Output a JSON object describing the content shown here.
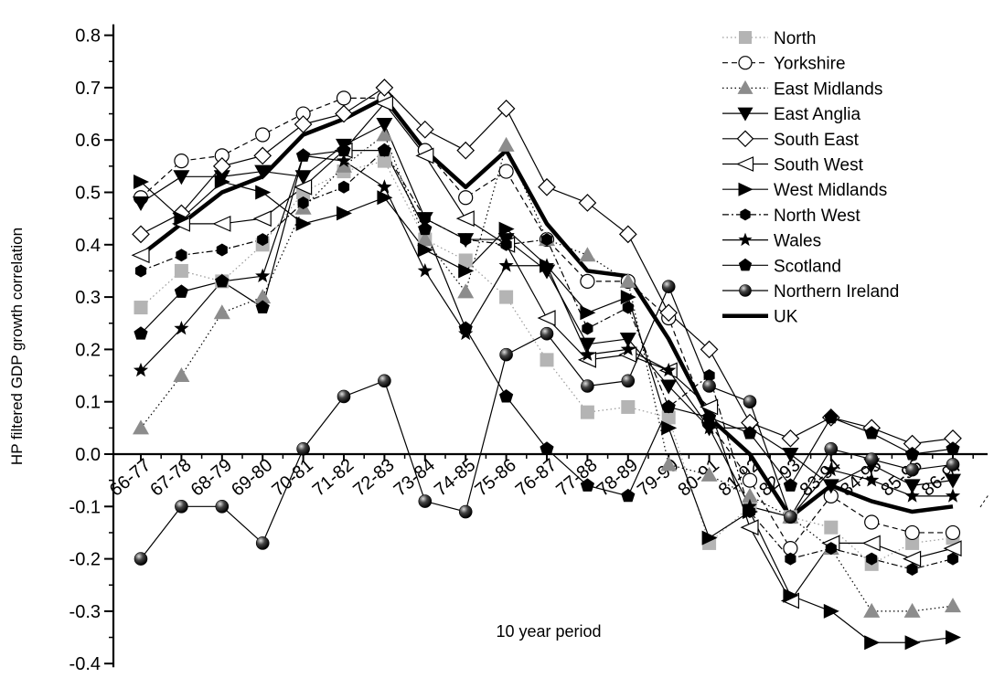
{
  "chart_data": {
    "type": "line",
    "ylabel": "HP filtered GDP growth correlation",
    "xlabel": "10 year period",
    "ylim": [
      -0.4,
      0.8
    ],
    "y_ticks": [
      "-0.4",
      "-0.3",
      "-0.2",
      "-0.1",
      "0.0",
      "0.1",
      "0.2",
      "0.3",
      "0.4",
      "0.5",
      "0.6",
      "0.7",
      "0.8"
    ],
    "categories": [
      "66-77",
      "67-78",
      "68-79",
      "69-80",
      "70-81",
      "71-82",
      "72-83",
      "73-84",
      "74-85",
      "75-86",
      "76-87",
      "77-88",
      "78-89",
      "79-90",
      "80-91",
      "81-92",
      "82-93",
      "83-94",
      "84-95",
      "85-96",
      "86-97"
    ],
    "legend_position": "top-right",
    "series": [
      {
        "name": "North",
        "marker": "square",
        "line": "dotted",
        "color": "#b4b4b4",
        "values": [
          0.28,
          0.35,
          0.33,
          0.4,
          0.5,
          0.54,
          0.56,
          0.41,
          0.37,
          0.3,
          0.18,
          0.08,
          0.09,
          0.07,
          -0.17,
          -0.1,
          -0.12,
          -0.14,
          -0.21,
          -0.17,
          -0.16
        ]
      },
      {
        "name": "Yorkshire",
        "marker": "open-circle",
        "line": "dashed",
        "color": "#000000",
        "values": [
          0.49,
          0.56,
          0.57,
          0.61,
          0.65,
          0.68,
          0.68,
          0.58,
          0.49,
          0.54,
          0.41,
          0.33,
          0.33,
          0.26,
          0.06,
          -0.05,
          -0.18,
          -0.08,
          -0.13,
          -0.15,
          -0.15
        ]
      },
      {
        "name": "East Midlands",
        "marker": "triangle-up",
        "line": "dotted",
        "color": "#8c8c8c",
        "values": [
          0.05,
          0.15,
          0.27,
          0.3,
          0.47,
          0.55,
          0.61,
          0.41,
          0.31,
          0.59,
          0.41,
          0.38,
          0.33,
          -0.02,
          -0.04,
          -0.08,
          -0.12,
          -0.18,
          -0.3,
          -0.3,
          -0.29
        ]
      },
      {
        "name": "East Anglia",
        "marker": "triangle-down",
        "line": "solid",
        "color": "#000000",
        "values": [
          0.48,
          0.53,
          0.53,
          0.54,
          0.53,
          0.59,
          0.63,
          0.45,
          0.41,
          0.41,
          0.35,
          0.21,
          0.22,
          0.13,
          0.05,
          0.05,
          0.0,
          -0.06,
          -0.02,
          -0.06,
          -0.05
        ]
      },
      {
        "name": "South East",
        "marker": "open-diamond",
        "line": "solid",
        "color": "#000000",
        "values": [
          0.42,
          0.46,
          0.55,
          0.57,
          0.63,
          0.65,
          0.7,
          0.62,
          0.58,
          0.66,
          0.51,
          0.48,
          0.42,
          0.27,
          0.2,
          0.06,
          0.03,
          0.07,
          0.05,
          0.02,
          0.03
        ]
      },
      {
        "name": "South West",
        "marker": "open-triangle-left",
        "line": "solid",
        "color": "#000000",
        "values": [
          0.38,
          0.44,
          0.44,
          0.45,
          0.51,
          0.58,
          0.67,
          0.57,
          0.45,
          0.4,
          0.26,
          0.18,
          0.19,
          0.16,
          0.09,
          -0.14,
          -0.28,
          -0.17,
          -0.17,
          -0.2,
          -0.18
        ]
      },
      {
        "name": "West Midlands",
        "marker": "triangle-right",
        "line": "solid",
        "color": "#000000",
        "values": [
          0.52,
          0.45,
          0.52,
          0.5,
          0.44,
          0.46,
          0.49,
          0.39,
          0.35,
          0.43,
          0.36,
          0.27,
          0.3,
          0.05,
          -0.16,
          -0.11,
          -0.27,
          -0.3,
          -0.36,
          -0.36,
          -0.35
        ]
      },
      {
        "name": "North West",
        "marker": "hexagon",
        "line": "dash-dot",
        "color": "#000000",
        "values": [
          0.35,
          0.38,
          0.39,
          0.41,
          0.48,
          0.51,
          0.58,
          0.45,
          0.41,
          0.4,
          0.41,
          0.24,
          0.28,
          0.09,
          0.15,
          -0.11,
          -0.2,
          -0.18,
          -0.2,
          -0.22,
          -0.2
        ]
      },
      {
        "name": "Wales",
        "marker": "star",
        "line": "solid",
        "color": "#000000",
        "values": [
          0.16,
          0.24,
          0.33,
          0.34,
          0.57,
          0.56,
          0.51,
          0.35,
          0.23,
          0.36,
          0.36,
          0.19,
          0.2,
          0.16,
          0.05,
          -0.1,
          -0.12,
          -0.03,
          -0.05,
          -0.08,
          -0.08
        ]
      },
      {
        "name": "Scotland",
        "marker": "pentagon",
        "line": "solid",
        "color": "#000000",
        "values": [
          0.23,
          0.31,
          0.33,
          0.28,
          0.57,
          0.58,
          0.58,
          0.43,
          0.24,
          0.11,
          0.01,
          -0.06,
          -0.08,
          0.09,
          0.07,
          0.04,
          -0.06,
          0.07,
          0.04,
          0.0,
          0.01
        ]
      },
      {
        "name": "Northern Ireland",
        "marker": "sphere",
        "line": "solid",
        "color": "#000000",
        "values": [
          -0.2,
          -0.1,
          -0.1,
          -0.17,
          0.01,
          0.11,
          0.14,
          -0.09,
          -0.11,
          0.19,
          0.23,
          0.13,
          0.14,
          0.32,
          0.13,
          0.1,
          -0.12,
          0.01,
          -0.01,
          -0.03,
          -0.02
        ]
      },
      {
        "name": "UK",
        "marker": "none",
        "line": "thick-solid",
        "color": "#000000",
        "values": [
          0.38,
          0.44,
          0.5,
          0.53,
          0.61,
          0.64,
          0.68,
          0.58,
          0.51,
          0.58,
          0.44,
          0.35,
          0.34,
          0.22,
          0.07,
          0.0,
          -0.12,
          -0.06,
          -0.09,
          -0.11,
          -0.1
        ]
      }
    ]
  }
}
